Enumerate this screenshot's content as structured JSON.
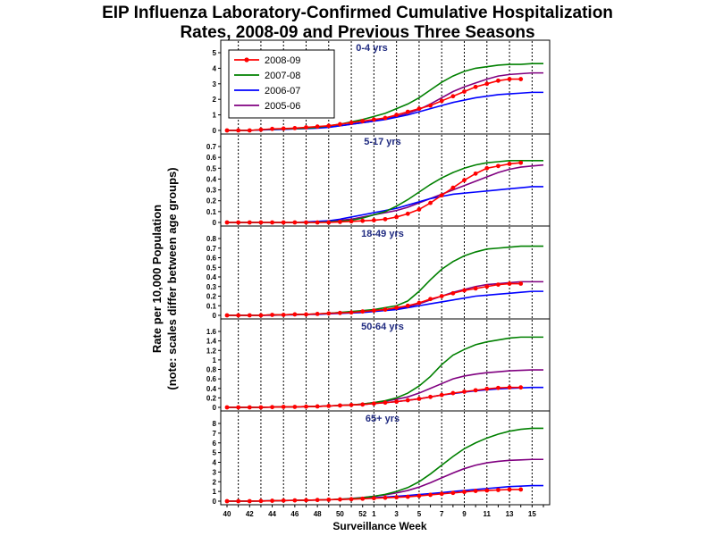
{
  "title_line1": "EIP Influenza Laboratory-Confirmed Cumulative Hospitalization",
  "title_line2": "Rates, 2008-09 and Previous Three Seasons",
  "ylabel_line1": "Rate per 10,000 Population",
  "ylabel_line2": "(note: scales differ between age groups)",
  "xlabel": "Surveillance Week",
  "colors": {
    "2008-09": "#ff0000",
    "2007-08": "#008000",
    "2006-07": "#0000ff",
    "2005-06": "#800080",
    "panel_title": "#1f2a80"
  },
  "chart_data": {
    "type": "line",
    "x_tick_labels": [
      "40",
      "42",
      "44",
      "46",
      "48",
      "50",
      "52",
      "1",
      "3",
      "5",
      "7",
      "9",
      "11",
      "13",
      "15"
    ],
    "week_order": [
      "40",
      "41",
      "42",
      "43",
      "44",
      "45",
      "46",
      "47",
      "48",
      "49",
      "50",
      "51",
      "52",
      "1",
      "2",
      "3",
      "4",
      "5",
      "6",
      "7",
      "8",
      "9",
      "10",
      "11",
      "12",
      "13",
      "14",
      "15",
      "16"
    ],
    "legend": [
      "2008-09",
      "2007-08",
      "2006-07",
      "2005-06"
    ],
    "legend_position": "top-left",
    "grid": "vertical dotted lines",
    "panels": [
      {
        "title": "0-4 yrs",
        "ylim": [
          0,
          5
        ],
        "yticks": [
          "0",
          "1",
          "2",
          "3",
          "4",
          "5"
        ],
        "series": [
          {
            "name": "2008-09",
            "values": [
              0,
              0,
              0,
              0.05,
              0.1,
              0.12,
              0.15,
              0.2,
              0.25,
              0.3,
              0.4,
              0.5,
              0.6,
              0.7,
              0.8,
              1.0,
              1.2,
              1.4,
              1.6,
              1.9,
              2.2,
              2.5,
              2.8,
              3.0,
              3.2,
              3.3,
              3.3
            ]
          },
          {
            "name": "2007-08",
            "values": [
              0,
              0,
              0,
              0.05,
              0.08,
              0.1,
              0.12,
              0.15,
              0.2,
              0.3,
              0.4,
              0.55,
              0.7,
              0.9,
              1.1,
              1.4,
              1.7,
              2.1,
              2.6,
              3.1,
              3.5,
              3.8,
              4.0,
              4.1,
              4.2,
              4.25,
              4.25,
              4.3,
              4.3
            ]
          },
          {
            "name": "2006-07",
            "values": [
              0,
              0,
              0,
              0.03,
              0.05,
              0.07,
              0.1,
              0.12,
              0.15,
              0.2,
              0.3,
              0.4,
              0.5,
              0.6,
              0.7,
              0.85,
              1.0,
              1.2,
              1.4,
              1.6,
              1.8,
              1.95,
              2.1,
              2.2,
              2.3,
              2.35,
              2.4,
              2.45,
              2.45
            ]
          },
          {
            "name": "2005-06",
            "values": [
              0,
              0,
              0,
              0.04,
              0.06,
              0.08,
              0.1,
              0.13,
              0.17,
              0.22,
              0.3,
              0.4,
              0.5,
              0.6,
              0.75,
              0.9,
              1.1,
              1.35,
              1.7,
              2.1,
              2.5,
              2.8,
              3.05,
              3.3,
              3.5,
              3.6,
              3.65,
              3.7,
              3.7
            ]
          }
        ]
      },
      {
        "title": "5-17 yrs",
        "ylim": [
          0,
          0.7
        ],
        "yticks": [
          "0",
          "0.1",
          "0.2",
          "0.3",
          "0.4",
          "0.5",
          "0.6",
          "0.7"
        ],
        "series": [
          {
            "name": "2008-09",
            "values": [
              0,
              0,
              0,
              0,
              0,
              0,
              0,
              0,
              0,
              0,
              0.005,
              0.01,
              0.015,
              0.02,
              0.03,
              0.05,
              0.08,
              0.12,
              0.18,
              0.25,
              0.32,
              0.39,
              0.45,
              0.5,
              0.52,
              0.54,
              0.55
            ]
          },
          {
            "name": "2007-08",
            "values": [
              0,
              0,
              0,
              0,
              0,
              0,
              0,
              0,
              0,
              0.005,
              0.01,
              0.02,
              0.04,
              0.07,
              0.1,
              0.15,
              0.21,
              0.28,
              0.35,
              0.41,
              0.46,
              0.5,
              0.53,
              0.55,
              0.56,
              0.57,
              0.57,
              0.57,
              0.57
            ]
          },
          {
            "name": "2006-07",
            "values": [
              0,
              0,
              0,
              0,
              0,
              0,
              0,
              0.005,
              0.01,
              0.015,
              0.03,
              0.05,
              0.07,
              0.09,
              0.11,
              0.13,
              0.16,
              0.19,
              0.22,
              0.24,
              0.26,
              0.27,
              0.28,
              0.29,
              0.3,
              0.31,
              0.32,
              0.33,
              0.33
            ]
          },
          {
            "name": "2005-06",
            "values": [
              0,
              0,
              0,
              0,
              0,
              0,
              0,
              0,
              0.005,
              0.01,
              0.02,
              0.03,
              0.05,
              0.07,
              0.09,
              0.11,
              0.14,
              0.18,
              0.22,
              0.26,
              0.3,
              0.34,
              0.38,
              0.42,
              0.46,
              0.49,
              0.51,
              0.52,
              0.53
            ]
          }
        ]
      },
      {
        "title": "18-49 yrs",
        "ylim": [
          0,
          0.8
        ],
        "yticks": [
          "0",
          "0.1",
          "0.2",
          "0.3",
          "0.4",
          "0.5",
          "0.6",
          "0.7",
          "0.8"
        ],
        "series": [
          {
            "name": "2008-09",
            "values": [
              0,
              0,
              0,
              0,
              0.005,
              0.005,
              0.01,
              0.01,
              0.015,
              0.02,
              0.025,
              0.03,
              0.04,
              0.05,
              0.06,
              0.08,
              0.1,
              0.13,
              0.17,
              0.2,
              0.23,
              0.26,
              0.28,
              0.3,
              0.32,
              0.33,
              0.33
            ]
          },
          {
            "name": "2007-08",
            "values": [
              0,
              0,
              0,
              0,
              0.005,
              0.005,
              0.01,
              0.01,
              0.015,
              0.02,
              0.03,
              0.04,
              0.05,
              0.06,
              0.08,
              0.1,
              0.15,
              0.25,
              0.37,
              0.48,
              0.56,
              0.62,
              0.66,
              0.69,
              0.7,
              0.71,
              0.72,
              0.72,
              0.72
            ]
          },
          {
            "name": "2006-07",
            "values": [
              0,
              0,
              0,
              0,
              0,
              0.005,
              0.005,
              0.01,
              0.01,
              0.015,
              0.02,
              0.025,
              0.03,
              0.04,
              0.05,
              0.06,
              0.08,
              0.1,
              0.12,
              0.14,
              0.16,
              0.18,
              0.2,
              0.21,
              0.22,
              0.23,
              0.24,
              0.25,
              0.25
            ]
          },
          {
            "name": "2005-06",
            "values": [
              0,
              0,
              0,
              0,
              0.005,
              0.005,
              0.01,
              0.01,
              0.015,
              0.02,
              0.03,
              0.035,
              0.04,
              0.05,
              0.06,
              0.07,
              0.09,
              0.12,
              0.16,
              0.2,
              0.24,
              0.27,
              0.3,
              0.32,
              0.33,
              0.34,
              0.35,
              0.35,
              0.35
            ]
          }
        ]
      },
      {
        "title": "50-64 yrs",
        "ylim": [
          0,
          1.6
        ],
        "yticks": [
          "0",
          "0.2",
          "0.4",
          "0.6",
          "0.8",
          "1",
          "1.2",
          "1.4",
          "1.6"
        ],
        "series": [
          {
            "name": "2008-09",
            "values": [
              0,
              0,
              0,
              0,
              0.005,
              0.01,
              0.01,
              0.015,
              0.02,
              0.03,
              0.04,
              0.05,
              0.06,
              0.08,
              0.1,
              0.12,
              0.15,
              0.18,
              0.22,
              0.26,
              0.3,
              0.33,
              0.36,
              0.39,
              0.41,
              0.42,
              0.42
            ]
          },
          {
            "name": "2007-08",
            "values": [
              0,
              0,
              0,
              0,
              0.005,
              0.01,
              0.01,
              0.015,
              0.02,
              0.03,
              0.04,
              0.05,
              0.07,
              0.1,
              0.14,
              0.2,
              0.3,
              0.45,
              0.65,
              0.9,
              1.1,
              1.22,
              1.32,
              1.38,
              1.42,
              1.46,
              1.48,
              1.48,
              1.48
            ]
          },
          {
            "name": "2006-07",
            "values": [
              0,
              0,
              0,
              0,
              0.005,
              0.01,
              0.01,
              0.015,
              0.02,
              0.03,
              0.04,
              0.05,
              0.06,
              0.08,
              0.1,
              0.12,
              0.15,
              0.18,
              0.22,
              0.26,
              0.29,
              0.32,
              0.35,
              0.37,
              0.39,
              0.4,
              0.41,
              0.42,
              0.42
            ]
          },
          {
            "name": "2005-06",
            "values": [
              0,
              0,
              0,
              0,
              0.005,
              0.01,
              0.01,
              0.015,
              0.02,
              0.03,
              0.04,
              0.05,
              0.07,
              0.1,
              0.13,
              0.17,
              0.22,
              0.3,
              0.4,
              0.5,
              0.6,
              0.66,
              0.7,
              0.73,
              0.75,
              0.77,
              0.78,
              0.79,
              0.79
            ]
          }
        ]
      },
      {
        "title": "65+ yrs",
        "ylim": [
          0,
          8
        ],
        "yticks": [
          "0",
          "1",
          "2",
          "3",
          "4",
          "5",
          "6",
          "7",
          "8"
        ],
        "series": [
          {
            "name": "2008-09",
            "values": [
              0,
              0,
              0,
              0.02,
              0.04,
              0.06,
              0.08,
              0.1,
              0.12,
              0.15,
              0.18,
              0.2,
              0.25,
              0.3,
              0.35,
              0.4,
              0.45,
              0.55,
              0.65,
              0.75,
              0.85,
              0.95,
              1.05,
              1.1,
              1.15,
              1.2,
              1.2
            ]
          },
          {
            "name": "2007-08",
            "values": [
              0,
              0,
              0,
              0.02,
              0.04,
              0.06,
              0.08,
              0.1,
              0.12,
              0.15,
              0.2,
              0.25,
              0.35,
              0.5,
              0.7,
              1.0,
              1.4,
              2.0,
              2.8,
              3.7,
              4.6,
              5.4,
              6.0,
              6.5,
              6.9,
              7.2,
              7.4,
              7.5,
              7.5
            ]
          },
          {
            "name": "2006-07",
            "values": [
              0,
              0,
              0,
              0.02,
              0.04,
              0.06,
              0.08,
              0.1,
              0.12,
              0.15,
              0.18,
              0.22,
              0.28,
              0.35,
              0.42,
              0.5,
              0.58,
              0.68,
              0.78,
              0.88,
              1.0,
              1.1,
              1.2,
              1.3,
              1.4,
              1.5,
              1.55,
              1.6,
              1.6
            ]
          },
          {
            "name": "2005-06",
            "values": [
              0,
              0,
              0,
              0.02,
              0.04,
              0.06,
              0.08,
              0.1,
              0.12,
              0.15,
              0.2,
              0.28,
              0.38,
              0.5,
              0.65,
              0.85,
              1.1,
              1.45,
              1.9,
              2.4,
              2.9,
              3.35,
              3.7,
              3.95,
              4.1,
              4.2,
              4.25,
              4.3,
              4.3
            ]
          }
        ]
      }
    ]
  }
}
